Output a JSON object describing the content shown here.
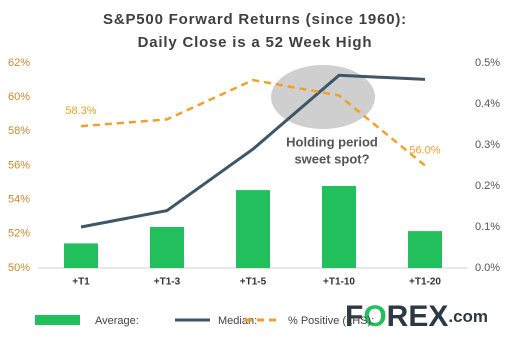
{
  "chart_data": {
    "type": "bar",
    "title": [
      "S&P500 Forward Returns (since 1960):",
      "Daily Close is a 52 Week High"
    ],
    "categories": [
      "+T1",
      "+T1-3",
      "+T1-5",
      "+T1-10",
      "+T1-20"
    ],
    "series": [
      {
        "name": "Average:",
        "type": "bar",
        "axis": "y2",
        "color": "#21c05c",
        "values": [
          0.06,
          0.1,
          0.19,
          0.2,
          0.09
        ]
      },
      {
        "name": "Median:",
        "type": "line",
        "axis": "y2",
        "color": "#3e5767",
        "values": [
          0.1,
          0.14,
          0.29,
          0.47,
          0.46
        ]
      },
      {
        "name": "% Positive (LHS):",
        "type": "line",
        "dashed": true,
        "color": "#f0a02c",
        "values": [
          58.3,
          58.7,
          61.0,
          60.1,
          56.0
        ],
        "value_labels": [
          "58.3%",
          null,
          null,
          null,
          "56.0%"
        ]
      }
    ],
    "ylim": [
      50,
      62
    ],
    "yticks": [
      {
        "value": 50,
        "label": "50%"
      },
      {
        "value": 52,
        "label": "52%"
      },
      {
        "value": 54,
        "label": "54%"
      },
      {
        "value": 56,
        "label": "56%"
      },
      {
        "value": 58,
        "label": "58%"
      },
      {
        "value": 60,
        "label": "60%"
      },
      {
        "value": 62,
        "label": "62%"
      }
    ],
    "y2lim": [
      0,
      0.5
    ],
    "y2ticks": [
      {
        "value": 0,
        "label": "0.0%"
      },
      {
        "value": 0.1,
        "label": "0.1%"
      },
      {
        "value": 0.2,
        "label": "0.2%"
      },
      {
        "value": 0.3,
        "label": "0.3%"
      },
      {
        "value": 0.4,
        "label": "0.4%"
      },
      {
        "value": 0.5,
        "label": "0.5%"
      }
    ],
    "grid": false,
    "annotation": [
      "Holding period",
      "sweet spot?"
    ],
    "brand": [
      "F",
      "O",
      "REX",
      ".com"
    ]
  }
}
